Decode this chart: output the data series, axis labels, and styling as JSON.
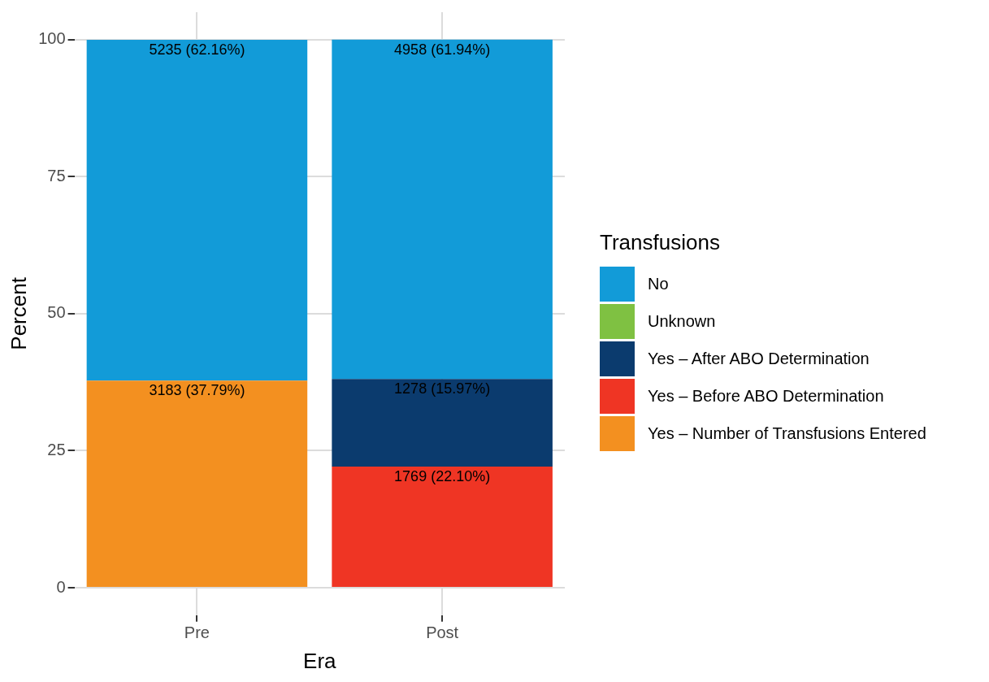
{
  "chart_data": {
    "type": "bar",
    "xlabel": "Era",
    "ylabel": "Percent",
    "legend_title": "Transfusions",
    "categories": [
      "Pre",
      "Post"
    ],
    "stacked": true,
    "ylim": [
      -5,
      105
    ],
    "yticks": [
      0,
      25,
      50,
      75,
      100
    ],
    "grid": true,
    "legend": "right",
    "series": [
      {
        "name": "Yes – Number of Transfusions Entered",
        "color": "#f39020",
        "values": [
          37.79,
          null
        ],
        "value_labels": [
          "3183 (37.79%)",
          null
        ]
      },
      {
        "name": "Yes – Before ABO Determination",
        "color": "#ef3524",
        "values": [
          null,
          22.1
        ],
        "value_labels": [
          null,
          "1769 (22.10%)"
        ]
      },
      {
        "name": "Yes – After ABO Determination",
        "color": "#0b3b6e",
        "values": [
          null,
          15.97
        ],
        "value_labels": [
          null,
          "1278 (15.97%)"
        ]
      },
      {
        "name": "Unknown",
        "color": "#7fc142",
        "values": [
          null,
          null
        ]
      },
      {
        "name": "No",
        "color": "#129bd8",
        "values": [
          62.16,
          61.94
        ],
        "value_labels": [
          "5235 (62.16%)",
          "4958 (61.94%)"
        ]
      }
    ]
  }
}
